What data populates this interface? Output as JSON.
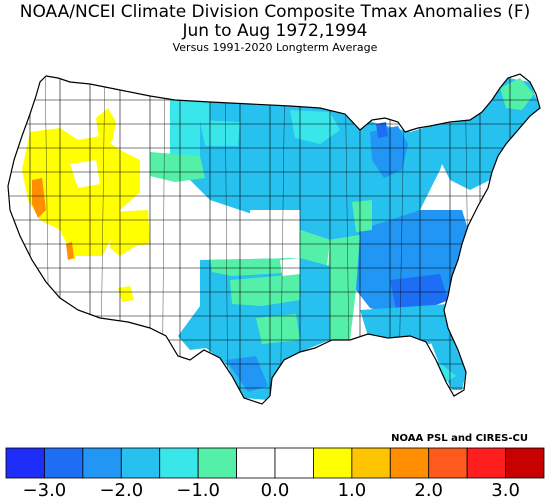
{
  "title": {
    "line1": "NOAA/NCEI Climate Division Composite Tmax Anomalies (F)",
    "line2": "Jun to Aug  1972,1994",
    "line3": "Versus 1991-2020 Longterm Average"
  },
  "credit": "NOAA PSL and CIRES-CU",
  "colorbar": {
    "colors": [
      "#1e2dfa",
      "#1e6ef5",
      "#2196f5",
      "#27c1f0",
      "#39e6ea",
      "#55f0a8",
      "#ffffff",
      "#ffffff",
      "#ffff00",
      "#ffc400",
      "#ff8e00",
      "#ff5a1e",
      "#ff1e1e",
      "#c80000"
    ],
    "tick_labels": [
      "-3.0",
      "-2.0",
      "-1.0",
      "0.0",
      "1.0",
      "2.0",
      "3.0"
    ],
    "range": [
      -3.5,
      3.5
    ],
    "step": 0.5
  },
  "map": {
    "type": "choropleth",
    "region": "Contiguous United States climate divisions",
    "colors": {
      "border": "#000000",
      "neutral": "#ffffff",
      "warm_yellow": "#ffff00",
      "warm_orange": "#ff8e00",
      "cool_cyan": "#27c1f0",
      "cool_light": "#39e6ea",
      "cool_mid": "#2196f5",
      "cool_deep": "#1e6ef5",
      "mint": "#55f0a8"
    }
  }
}
